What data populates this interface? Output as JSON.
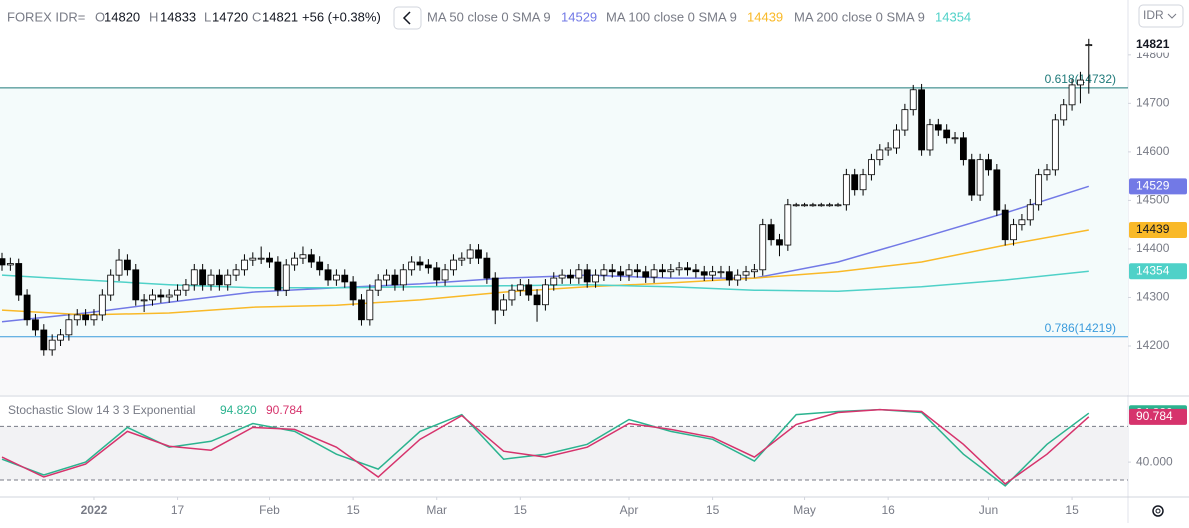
{
  "header": {
    "ohlc_labels": [
      "O",
      "H",
      "L",
      "C"
    ],
    "currency": "IDR"
  },
  "chart_data": [
    {
      "type": "candlestick",
      "title": "FOREX IDR=",
      "change": "+56 (+0.38%)",
      "xlim": [
        -0.24,
        134.69
      ],
      "ylim": [
        14099,
        14913
      ],
      "yticks": [
        14200,
        14300,
        14400,
        14500,
        14600,
        14700,
        14800
      ],
      "up_color": "#ffffff",
      "down_color": "#000000",
      "candles": [
        [
          14380,
          14392,
          14355,
          14367
        ],
        [
          14367,
          14382,
          14355,
          14370
        ],
        [
          14370,
          14380,
          14293,
          14305
        ],
        [
          14305,
          14317,
          14242,
          14254
        ],
        [
          14254,
          14266,
          14221,
          14233
        ],
        [
          14233,
          14245,
          14180,
          14192
        ],
        [
          14192,
          14224,
          14180,
          14212
        ],
        [
          14212,
          14235,
          14200,
          14223
        ],
        [
          14223,
          14266,
          14211,
          14254
        ],
        [
          14254,
          14276,
          14242,
          14264
        ],
        [
          14264,
          14276,
          14242,
          14254
        ],
        [
          14254,
          14276,
          14242,
          14264
        ],
        [
          14264,
          14317,
          14252,
          14305
        ],
        [
          14305,
          14358,
          14293,
          14346
        ],
        [
          14346,
          14400,
          14334,
          14377
        ],
        [
          14377,
          14389,
          14345,
          14357
        ],
        [
          14357,
          14369,
          14283,
          14295
        ],
        [
          14295,
          14307,
          14270,
          14295
        ],
        [
          14295,
          14317,
          14283,
          14305
        ],
        [
          14305,
          14317,
          14289,
          14301
        ],
        [
          14301,
          14317,
          14289,
          14305
        ],
        [
          14305,
          14327,
          14293,
          14315
        ],
        [
          14315,
          14338,
          14303,
          14326
        ],
        [
          14326,
          14369,
          14314,
          14357
        ],
        [
          14357,
          14369,
          14314,
          14326
        ],
        [
          14326,
          14358,
          14314,
          14346
        ],
        [
          14346,
          14358,
          14314,
          14326
        ],
        [
          14326,
          14358,
          14314,
          14346
        ],
        [
          14346,
          14369,
          14334,
          14357
        ],
        [
          14357,
          14389,
          14345,
          14377
        ],
        [
          14377,
          14393,
          14365,
          14381
        ],
        [
          14381,
          14405,
          14369,
          14381
        ],
        [
          14381,
          14393,
          14361,
          14373
        ],
        [
          14373,
          14385,
          14303,
          14315
        ],
        [
          14315,
          14379,
          14303,
          14367
        ],
        [
          14367,
          14393,
          14355,
          14381
        ],
        [
          14381,
          14405,
          14369,
          14388
        ],
        [
          14388,
          14400,
          14361,
          14373
        ],
        [
          14373,
          14385,
          14345,
          14357
        ],
        [
          14357,
          14369,
          14324,
          14336
        ],
        [
          14336,
          14358,
          14324,
          14346
        ],
        [
          14346,
          14358,
          14320,
          14332
        ],
        [
          14332,
          14344,
          14283,
          14295
        ],
        [
          14295,
          14307,
          14242,
          14254
        ],
        [
          14254,
          14327,
          14242,
          14315
        ],
        [
          14315,
          14348,
          14303,
          14336
        ],
        [
          14336,
          14358,
          14324,
          14346
        ],
        [
          14346,
          14358,
          14314,
          14326
        ],
        [
          14326,
          14369,
          14314,
          14357
        ],
        [
          14357,
          14385,
          14345,
          14373
        ],
        [
          14373,
          14385,
          14355,
          14367
        ],
        [
          14367,
          14379,
          14349,
          14361
        ],
        [
          14361,
          14373,
          14324,
          14336
        ],
        [
          14336,
          14369,
          14324,
          14357
        ],
        [
          14357,
          14389,
          14345,
          14377
        ],
        [
          14377,
          14393,
          14365,
          14381
        ],
        [
          14381,
          14410,
          14369,
          14398
        ],
        [
          14398,
          14410,
          14369,
          14381
        ],
        [
          14381,
          14393,
          14328,
          14340
        ],
        [
          14340,
          14352,
          14245,
          14274
        ],
        [
          14274,
          14307,
          14262,
          14295
        ],
        [
          14295,
          14327,
          14283,
          14315
        ],
        [
          14315,
          14338,
          14303,
          14326
        ],
        [
          14326,
          14338,
          14293,
          14305
        ],
        [
          14305,
          14317,
          14250,
          14285
        ],
        [
          14285,
          14338,
          14273,
          14326
        ],
        [
          14326,
          14352,
          14314,
          14340
        ],
        [
          14340,
          14358,
          14328,
          14346
        ],
        [
          14346,
          14358,
          14328,
          14340
        ],
        [
          14340,
          14369,
          14328,
          14357
        ],
        [
          14357,
          14369,
          14320,
          14332
        ],
        [
          14332,
          14358,
          14320,
          14346
        ],
        [
          14346,
          14369,
          14334,
          14357
        ],
        [
          14357,
          14369,
          14341,
          14353
        ],
        [
          14353,
          14365,
          14334,
          14346
        ],
        [
          14346,
          14369,
          14334,
          14357
        ],
        [
          14357,
          14369,
          14341,
          14353
        ],
        [
          14353,
          14365,
          14330,
          14342
        ],
        [
          14342,
          14369,
          14330,
          14357
        ],
        [
          14357,
          14369,
          14341,
          14353
        ],
        [
          14353,
          14369,
          14341,
          14357
        ],
        [
          14357,
          14373,
          14345,
          14361
        ],
        [
          14361,
          14373,
          14345,
          14357
        ],
        [
          14357,
          14369,
          14341,
          14353
        ],
        [
          14353,
          14365,
          14334,
          14346
        ],
        [
          14346,
          14365,
          14334,
          14353
        ],
        [
          14353,
          14365,
          14341,
          14353
        ],
        [
          14353,
          14365,
          14324,
          14336
        ],
        [
          14336,
          14358,
          14324,
          14346
        ],
        [
          14346,
          14365,
          14334,
          14353
        ],
        [
          14353,
          14369,
          14341,
          14357
        ],
        [
          14357,
          14462,
          14345,
          14450
        ],
        [
          14450,
          14462,
          14407,
          14419
        ],
        [
          14419,
          14431,
          14385,
          14408
        ],
        [
          14408,
          14503,
          14396,
          14491
        ],
        [
          14491,
          14495,
          14487,
          14491
        ],
        [
          14491,
          14495,
          14487,
          14491
        ],
        [
          14491,
          14495,
          14487,
          14491
        ],
        [
          14491,
          14495,
          14487,
          14491
        ],
        [
          14491,
          14495,
          14487,
          14491
        ],
        [
          14491,
          14495,
          14487,
          14491
        ],
        [
          14491,
          14565,
          14479,
          14553
        ],
        [
          14553,
          14565,
          14510,
          14522
        ],
        [
          14522,
          14565,
          14510,
          14553
        ],
        [
          14553,
          14596,
          14541,
          14584
        ],
        [
          14584,
          14616,
          14572,
          14604
        ],
        [
          14604,
          14620,
          14592,
          14608
        ],
        [
          14608,
          14657,
          14596,
          14645
        ],
        [
          14645,
          14699,
          14633,
          14687
        ],
        [
          14687,
          14738,
          14675,
          14728
        ],
        [
          14728,
          14740,
          14592,
          14604
        ],
        [
          14604,
          14668,
          14592,
          14656
        ],
        [
          14656,
          14668,
          14633,
          14645
        ],
        [
          14645,
          14657,
          14617,
          14629
        ],
        [
          14629,
          14641,
          14617,
          14629
        ],
        [
          14629,
          14641,
          14572,
          14584
        ],
        [
          14584,
          14596,
          14499,
          14511
        ],
        [
          14511,
          14596,
          14499,
          14584
        ],
        [
          14584,
          14596,
          14551,
          14563
        ],
        [
          14563,
          14575,
          14468,
          14480
        ],
        [
          14480,
          14492,
          14407,
          14419
        ],
        [
          14419,
          14462,
          14407,
          14450
        ],
        [
          14450,
          14472,
          14438,
          14460
        ],
        [
          14460,
          14503,
          14448,
          14491
        ],
        [
          14491,
          14565,
          14479,
          14553
        ],
        [
          14553,
          14575,
          14541,
          14563
        ],
        [
          14563,
          14678,
          14551,
          14666
        ],
        [
          14666,
          14709,
          14654,
          14697
        ],
        [
          14697,
          14750,
          14685,
          14738
        ],
        [
          14738,
          14765,
          14700,
          14748
        ],
        [
          14820,
          14833,
          14720,
          14821
        ]
      ],
      "series": [
        {
          "name": "MA 50 close 0 SMA 9",
          "color": "#7279e6",
          "last": 14529,
          "x": [
            0,
            10,
            20,
            30,
            40,
            50,
            60,
            70,
            80,
            90,
            100,
            110,
            120,
            130
          ],
          "values": [
            14250,
            14268,
            14290,
            14311,
            14320,
            14328,
            14340,
            14346,
            14340,
            14340,
            14373,
            14423,
            14474,
            14529
          ]
        },
        {
          "name": "MA 100 close 0 SMA 9",
          "color": "#f9b928",
          "last": 14439,
          "x": [
            0,
            10,
            20,
            30,
            40,
            50,
            60,
            70,
            80,
            90,
            100,
            110,
            120,
            130
          ],
          "values": [
            14274,
            14264,
            14268,
            14280,
            14284,
            14295,
            14311,
            14322,
            14330,
            14340,
            14353,
            14373,
            14408,
            14439
          ]
        },
        {
          "name": "MA 200 close 0 SMA 9",
          "color": "#4fd1c8",
          "last": 14354,
          "x": [
            0,
            10,
            20,
            30,
            40,
            50,
            60,
            70,
            80,
            90,
            100,
            110,
            120,
            130
          ],
          "values": [
            14346,
            14336,
            14326,
            14320,
            14320,
            14322,
            14324,
            14326,
            14322,
            14315,
            14313,
            14322,
            14336,
            14354
          ]
        }
      ],
      "fib_levels": [
        {
          "value": 14732,
          "label": "0.618(14732)",
          "color": "#1f7a7a"
        },
        {
          "value": 14219,
          "label": "0.786(14219)",
          "color": "#3a9bdc"
        }
      ]
    },
    {
      "type": "line",
      "title": "Stochastic Slow 14 3 3 Exponential",
      "xlim": [
        -0.24,
        134.69
      ],
      "ylim": [
        2,
        113
      ],
      "yticks": [
        {
          "value": 40,
          "label": "40.000"
        }
      ],
      "bands": [
        20,
        80
      ],
      "xticks": [
        {
          "value": 11,
          "label": "2022"
        },
        {
          "value": 21,
          "label": "17"
        },
        {
          "value": 32,
          "label": "Feb"
        },
        {
          "value": 42,
          "label": "15"
        },
        {
          "value": 52,
          "label": "Mar"
        },
        {
          "value": 62,
          "label": "15"
        },
        {
          "value": 75,
          "label": "Apr"
        },
        {
          "value": 85,
          "label": "15"
        },
        {
          "value": 96,
          "label": "May"
        },
        {
          "value": 106,
          "label": "16"
        },
        {
          "value": 118,
          "label": "Jun"
        },
        {
          "value": 128,
          "label": "15"
        }
      ],
      "series": [
        {
          "color": "#2bb38f",
          "last": {
            "value": 94.82,
            "label": "94.820"
          },
          "x": [
            0,
            5,
            10,
            15,
            20,
            25,
            30,
            35,
            40,
            45,
            50,
            55,
            60,
            65,
            70,
            75,
            80,
            85,
            90,
            95,
            100,
            105,
            110,
            115,
            120,
            125,
            130
          ],
          "values": [
            43.3,
            25.6,
            40,
            78.9,
            56.7,
            63.3,
            83.3,
            74.4,
            48.9,
            32.2,
            74.4,
            93.3,
            43.3,
            48.9,
            60,
            87.8,
            74.4,
            65.6,
            41.1,
            93.3,
            96.7,
            98.9,
            95.6,
            48.9,
            13.3,
            60,
            94.82
          ]
        },
        {
          "color": "#d6336c",
          "last": {
            "value": 90.784,
            "label": "90.784"
          },
          "x": [
            0,
            5,
            10,
            15,
            20,
            25,
            30,
            35,
            40,
            45,
            50,
            55,
            60,
            65,
            70,
            75,
            80,
            85,
            90,
            95,
            100,
            105,
            110,
            115,
            120,
            125,
            130
          ],
          "values": [
            45.6,
            23.3,
            37.8,
            74.4,
            57.8,
            53.3,
            78.9,
            76.7,
            56.7,
            23.3,
            65.6,
            92.2,
            52.2,
            45.6,
            56.7,
            83.3,
            76.7,
            67.8,
            45.6,
            82.2,
            95.6,
            98.9,
            96.7,
            60,
            15.6,
            48.9,
            90.784
          ]
        }
      ]
    }
  ]
}
